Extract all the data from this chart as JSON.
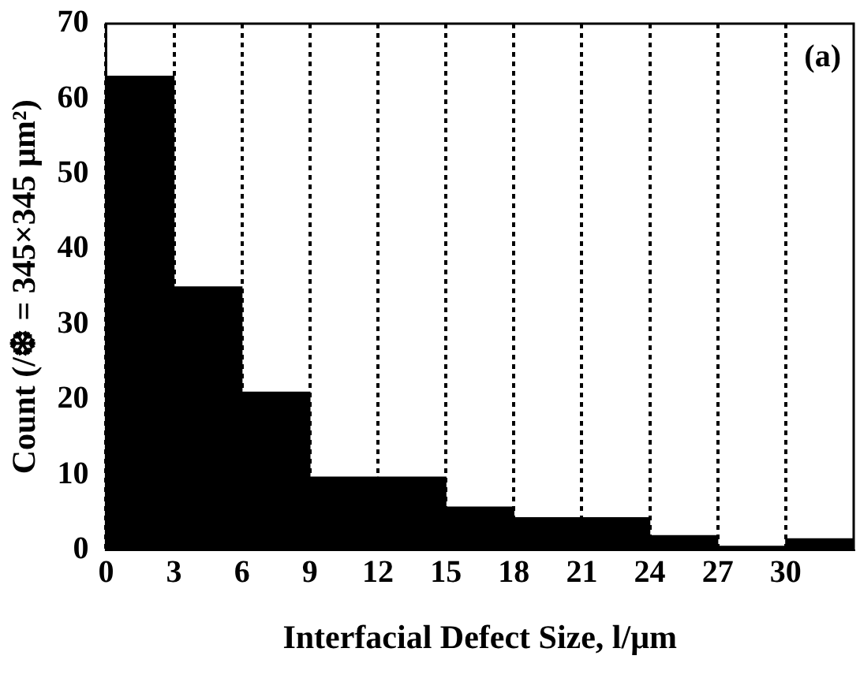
{
  "chart_data": {
    "type": "histogram",
    "xlabel": "Interfacial Defect Size, l/μm",
    "ylabel": "Count (/❆ = 345×345 μm²)",
    "bins": [
      0,
      3,
      6,
      9,
      12,
      15,
      18,
      21,
      24,
      27,
      30,
      33
    ],
    "values": [
      63,
      35,
      21,
      9.7,
      9.7,
      5.7,
      4.3,
      4.3,
      1.9,
      0.5,
      1.5
    ],
    "color": "#000000",
    "xlim": [
      0,
      33
    ],
    "ylim": [
      0,
      70
    ],
    "xticks": [
      0,
      3,
      6,
      9,
      12,
      15,
      18,
      21,
      24,
      27,
      30
    ],
    "yticks": [
      0,
      10,
      20,
      30,
      40,
      50,
      60,
      70
    ],
    "grid": "x",
    "annotations": [
      "(a)"
    ]
  }
}
